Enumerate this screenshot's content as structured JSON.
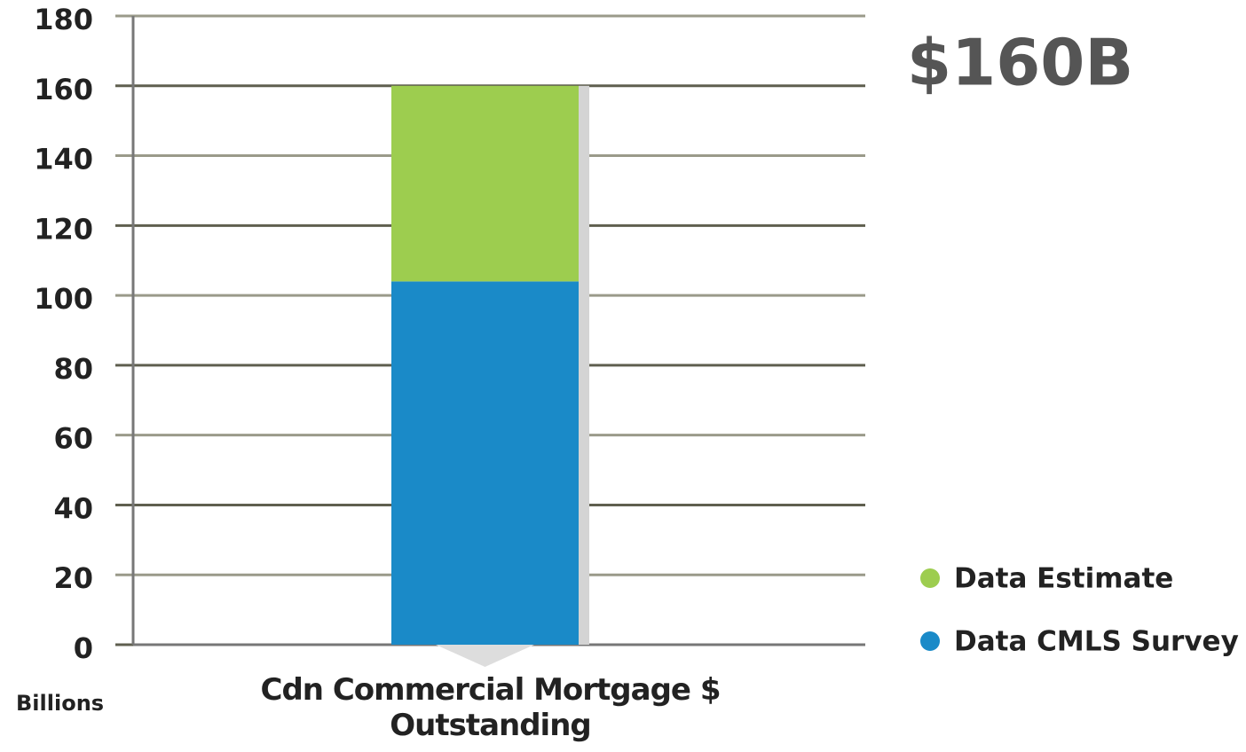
{
  "chart_data": {
    "type": "stacked_bar",
    "categories": [
      "Cdn Commercial Mortgage $ Outstanding"
    ],
    "series": [
      {
        "name": "Data CMLS Survey",
        "color": "#1a8ac8",
        "values": [
          104
        ]
      },
      {
        "name": "Data Estimate",
        "color": "#9dcd4f",
        "values": [
          56
        ]
      }
    ],
    "annotation": "$160B",
    "y_label": "Billions",
    "ylim": [
      0,
      180
    ],
    "yticks": [
      0,
      20,
      40,
      60,
      80,
      100,
      120,
      140,
      160,
      180
    ],
    "grid": true,
    "legend": "right"
  }
}
